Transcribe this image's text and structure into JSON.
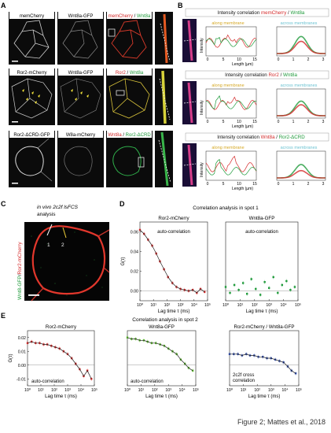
{
  "panel_letters": {
    "a": "A",
    "b": "B",
    "c": "C",
    "d": "D",
    "e": "E"
  },
  "colors": {
    "red": "#d42a2a",
    "green": "#1e9a3a",
    "gold": "#d6a824",
    "cyan": "#6dc3d2",
    "blue": "#2f4aa6",
    "yellow": "#f2e23a"
  },
  "panel_a": {
    "rows": [
      {
        "label1": "memCherry",
        "label2": "Wnt8a-GFP",
        "merge_red": "memCherry",
        "merge_sep": " / ",
        "merge_green": "Wnt8a"
      },
      {
        "label1": "Ror2-mCherry",
        "label2": "Wnt8a-GFP",
        "merge_red": "Ror2",
        "merge_sep": " / ",
        "merge_green": "Wnt8a"
      },
      {
        "label1": "Ror2-ΔCRD-GFP",
        "label2": "W8a-mCherry",
        "merge_red": "Wnt8a",
        "merge_sep": " / ",
        "merge_green": "Ror2-ΔCRD"
      }
    ]
  },
  "panel_b": {
    "rows": [
      {
        "title_prefix": "Intensity correlation ",
        "title_red": "memCherry",
        "title_sep": " / ",
        "title_green": "Wnt8a"
      },
      {
        "title_prefix": "Intensity correlation ",
        "title_red": "Ror2",
        "title_sep": " / ",
        "title_green": "Wnt8a"
      },
      {
        "title_prefix": "Intensity correlation ",
        "title_red": "Wnt8a",
        "title_sep": " / ",
        "title_green": "Ror2-ΔCRD"
      }
    ],
    "along_label": "along membrane",
    "across_label": "across membranes",
    "ylabel": "Intensity",
    "xlabel": "Length (µm)",
    "xticks_along": [
      "0",
      "5",
      "10",
      "15"
    ],
    "xticks_across": [
      "0",
      "1",
      "2",
      "3"
    ]
  },
  "panel_c": {
    "title_line1": "in vivo 2c2f lsFCS",
    "title_line2": "analysis",
    "side_label_green": "Wnt8-GFP",
    "side_label_sep": "/",
    "side_label_red": "Ror2-mCherry",
    "spot1": "1",
    "spot2": "2"
  },
  "panel_d": {
    "title": "Correlation analysis in spot 1",
    "ylabel": "G(τ)",
    "xlabel": "Lag time τ (ms)"
  },
  "panel_e": {
    "title": "Correlation analysis in spot 2",
    "ylabel": "G(τ)",
    "xlabel": "Lag time τ (ms)",
    "annot_auto": "auto-correlation",
    "annot_cross_line1": "2c2f cross",
    "annot_cross_line2": "correlation"
  },
  "footer": "Figure 2; Mattes et al., 2018",
  "chart_data": [
    {
      "type": "scatter",
      "title": "Ror2-mCherry",
      "annotation": "auto-correlation",
      "xlabel": "Lag time τ (ms)",
      "ylabel": "G(τ)",
      "x_log": true,
      "xlim": [
        1,
        100000
      ],
      "xticks": [
        "10⁰",
        "10¹",
        "10²",
        "10³",
        "10⁴",
        "10⁵"
      ],
      "ylim": [
        -0.01,
        0.07
      ],
      "yticks": [
        "0.06",
        "0.04",
        "0.02",
        "0.00"
      ],
      "series": [
        {
          "color": "#d42a2a",
          "x": [
            1,
            2,
            4,
            8,
            16,
            30,
            60,
            120,
            250,
            500,
            1000,
            2000,
            4000,
            8000,
            16000,
            30000,
            60000
          ],
          "y": [
            0.062,
            0.058,
            0.052,
            0.046,
            0.038,
            0.03,
            0.022,
            0.014,
            0.008,
            0.004,
            0.002,
            0.001,
            0.0,
            0.001,
            -0.002,
            0.002,
            -0.001
          ]
        }
      ]
    },
    {
      "type": "scatter",
      "title": "Wnt8a-GFP",
      "annotation": "auto-correlation",
      "xlabel": "Lag time τ (ms)",
      "x_log": true,
      "xlim": [
        1,
        100000
      ],
      "xticks": [
        "10⁰",
        "10¹",
        "10²",
        "10³",
        "10⁴",
        "10⁵"
      ],
      "ylim": [
        -0.01,
        0.07
      ],
      "series": [
        {
          "color": "#1e9a3a",
          "x": [
            1,
            2,
            4,
            8,
            16,
            30,
            60,
            120,
            250,
            500,
            1000,
            2000,
            4000,
            8000,
            16000,
            30000,
            60000
          ],
          "y": [
            0.004,
            -0.002,
            0.006,
            0.001,
            0.008,
            -0.003,
            0.012,
            0.002,
            -0.004,
            0.009,
            0.003,
            0.014,
            -0.002,
            0.006,
            0.01,
            0.001,
            0.004
          ]
        }
      ]
    },
    {
      "type": "scatter",
      "title": "Ror2-mCherry",
      "xlabel": "Lag time τ (ms)",
      "ylabel": "G(τ)",
      "x_log": true,
      "xlim": [
        1,
        100000
      ],
      "xticks": [
        "10⁰",
        "10¹",
        "10²",
        "10³",
        "10⁴",
        "10⁵"
      ],
      "ylim": [
        -0.015,
        0.025
      ],
      "yticks": [
        "0.02",
        "0.01",
        "0.00",
        "-0.01"
      ],
      "series": [
        {
          "color": "#d42a2a",
          "x": [
            1,
            2,
            4,
            8,
            16,
            30,
            60,
            120,
            250,
            500,
            1000,
            2000,
            4000,
            8000,
            16000,
            30000,
            60000
          ],
          "y": [
            0.016,
            0.017,
            0.016,
            0.016,
            0.015,
            0.015,
            0.014,
            0.013,
            0.012,
            0.01,
            0.008,
            0.005,
            0.001,
            -0.003,
            -0.008,
            -0.004,
            -0.01
          ]
        }
      ]
    },
    {
      "type": "scatter",
      "title": "Wnt8a-GFP",
      "xlabel": "Lag time τ (ms)",
      "x_log": true,
      "xlim": [
        1,
        100000
      ],
      "xticks": [
        "10⁰",
        "10¹",
        "10²",
        "10³",
        "10⁴",
        "10⁵"
      ],
      "ylim": [
        -0.015,
        0.025
      ],
      "series": [
        {
          "color": "#5cb82e",
          "x": [
            1,
            2,
            4,
            8,
            16,
            30,
            60,
            120,
            250,
            500,
            1000,
            2000,
            4000,
            8000,
            16000,
            30000,
            60000
          ],
          "y": [
            0.02,
            0.019,
            0.019,
            0.018,
            0.018,
            0.017,
            0.016,
            0.016,
            0.015,
            0.014,
            0.012,
            0.01,
            0.008,
            0.004,
            0.001,
            -0.002,
            -0.004
          ]
        }
      ]
    },
    {
      "type": "scatter",
      "title": "Ror2-mCherry / Wnt8a-GFP",
      "xlabel": "Lag time τ (ms)",
      "x_log": true,
      "xlim": [
        1,
        100000
      ],
      "xticks": [
        "10⁰",
        "10¹",
        "10²",
        "10³",
        "10⁴",
        "10⁵"
      ],
      "ylim": [
        -0.015,
        0.025
      ],
      "series": [
        {
          "color": "#2f4aa6",
          "x": [
            1,
            2,
            4,
            8,
            16,
            30,
            60,
            120,
            250,
            500,
            1000,
            2000,
            4000,
            8000,
            16000,
            30000,
            60000
          ],
          "y": [
            0.008,
            0.008,
            0.008,
            0.007,
            0.008,
            0.007,
            0.007,
            0.006,
            0.006,
            0.005,
            0.005,
            0.004,
            0.003,
            0.002,
            -0.001,
            -0.004,
            -0.006
          ]
        }
      ]
    }
  ]
}
